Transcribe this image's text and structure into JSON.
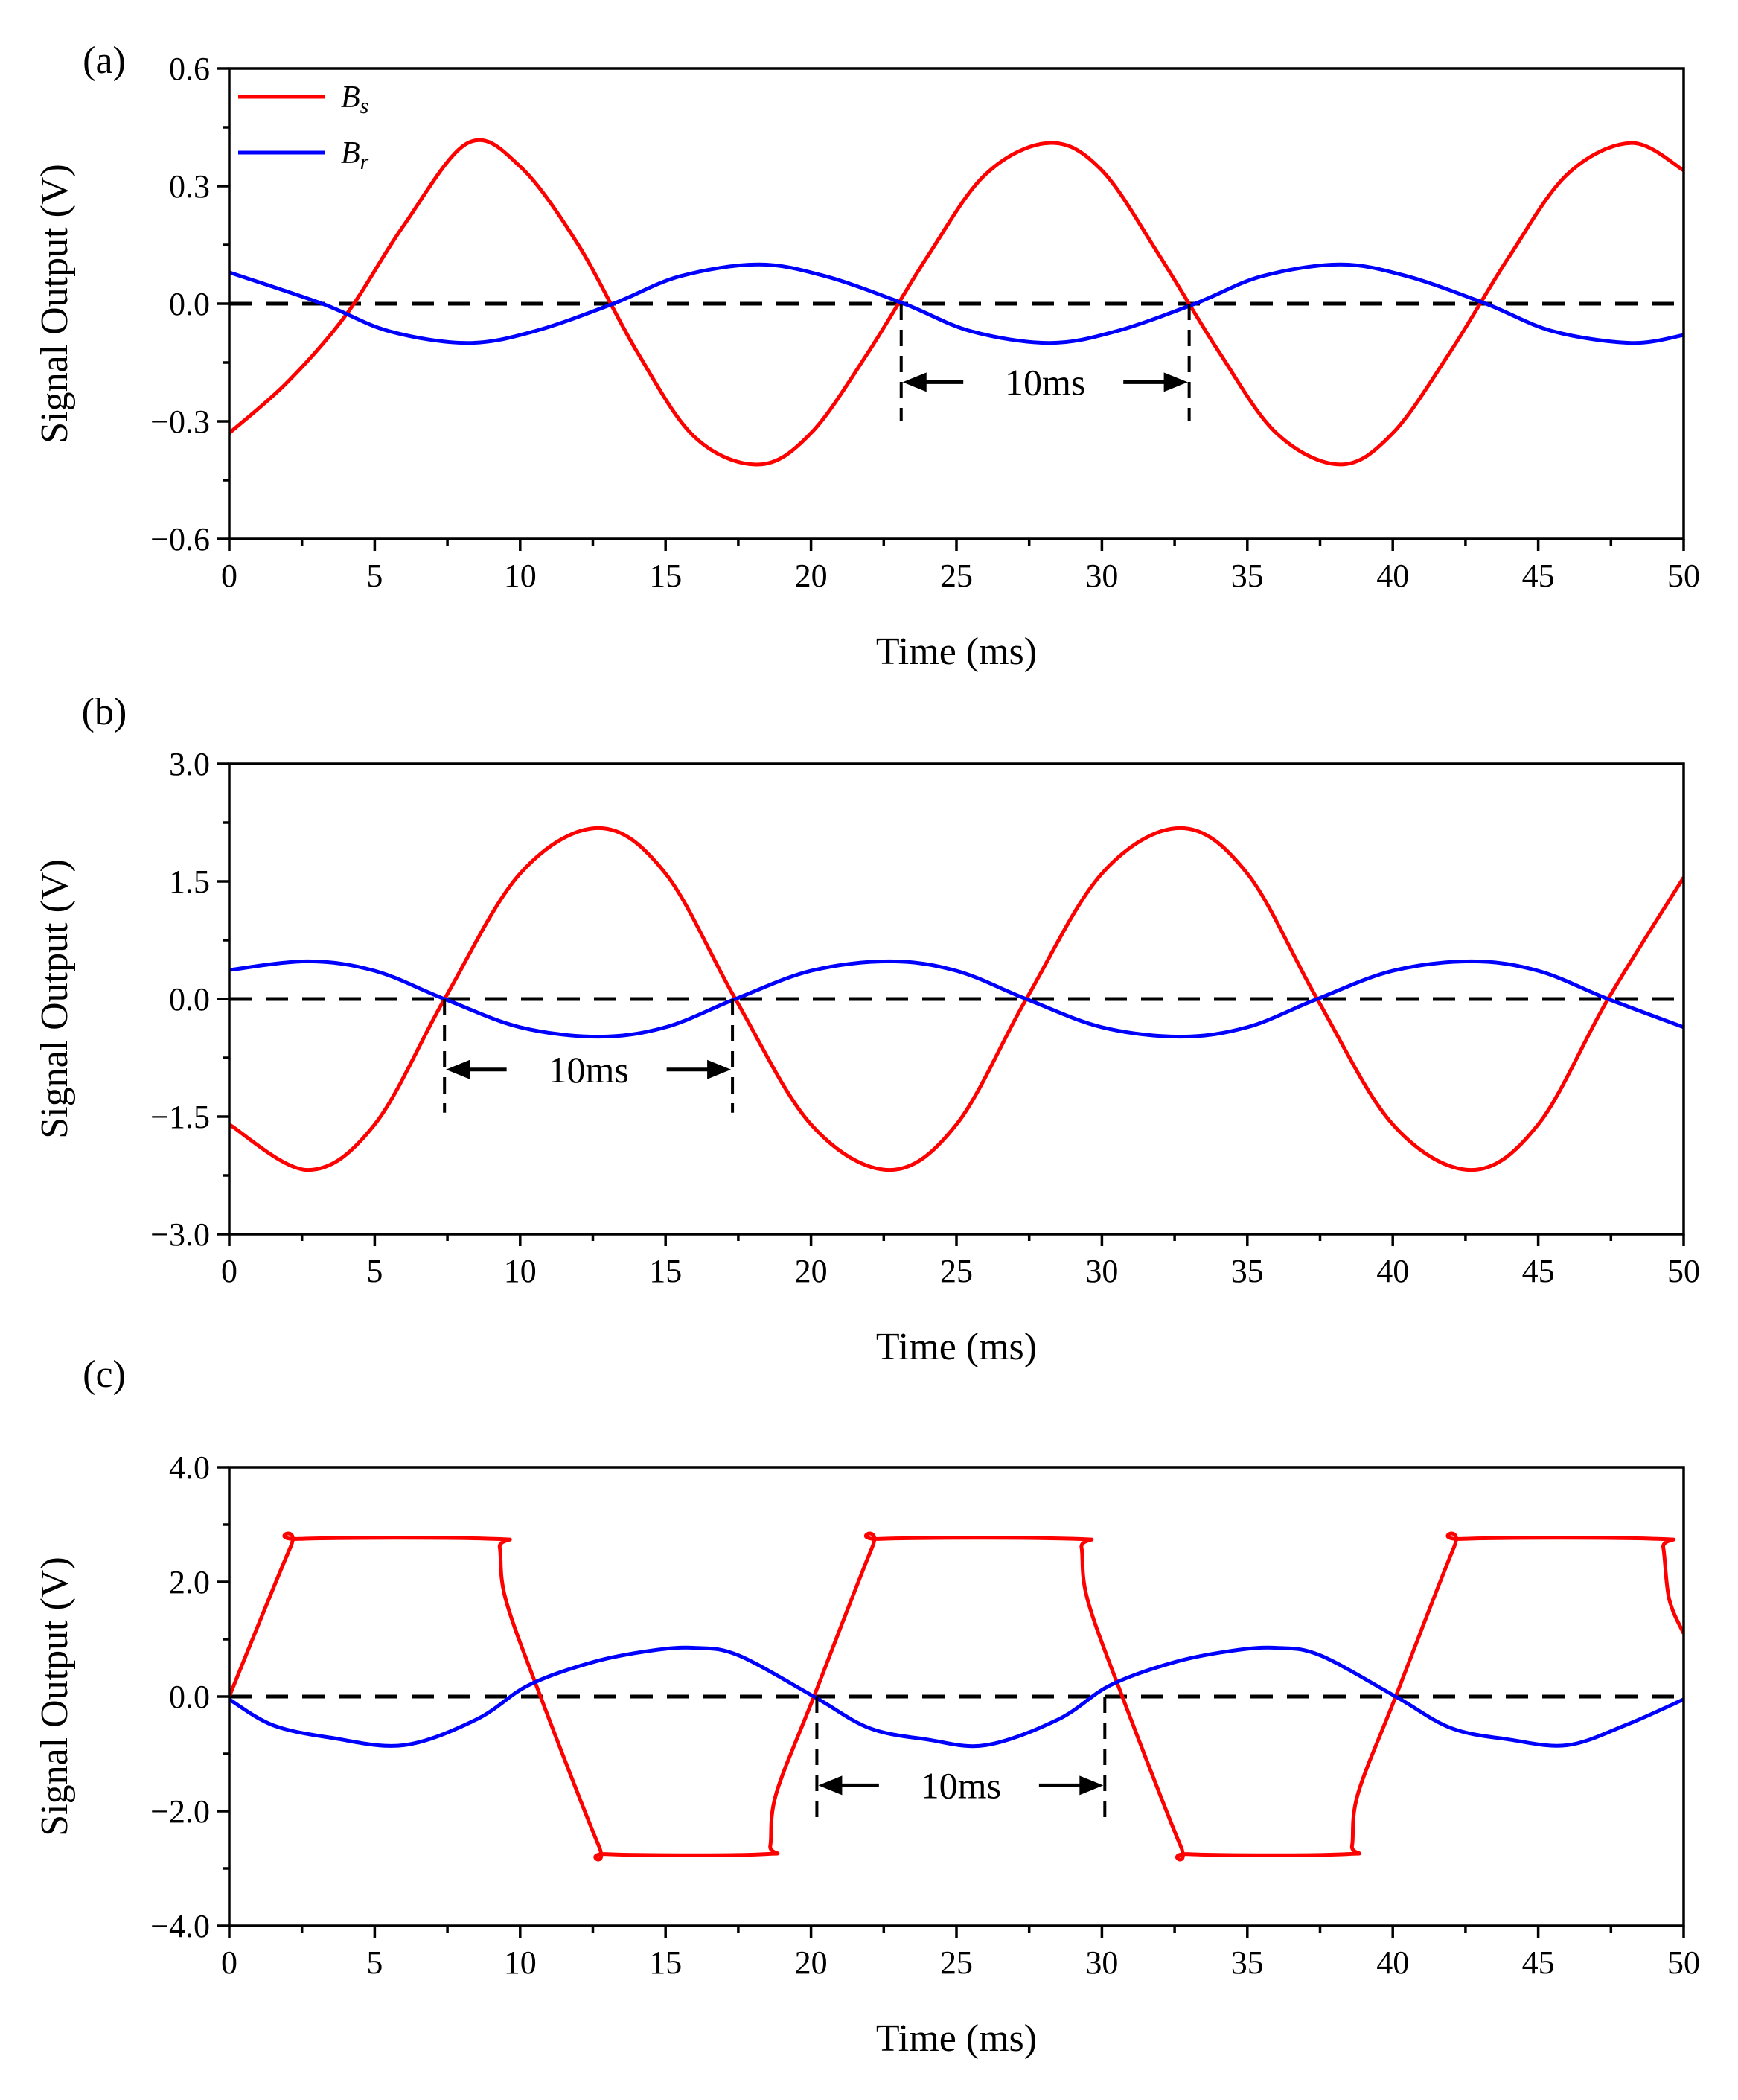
{
  "colors": {
    "bs": "#ff0000",
    "br": "#0000ff",
    "axis": "#000000"
  },
  "legend": {
    "bs_label_main": "B",
    "bs_label_sub": "s",
    "br_label_main": "B",
    "br_label_sub": "r",
    "placement": "top-left"
  },
  "chart_data": [
    {
      "type": "line",
      "panel_label": "(a)",
      "xlabel": "Time (ms)",
      "ylabel": "Signal Output (V)",
      "xlim": [
        0,
        50
      ],
      "ylim": [
        -0.6,
        0.6
      ],
      "x_ticks": [
        0,
        5,
        10,
        15,
        20,
        25,
        30,
        35,
        40,
        45,
        50
      ],
      "x_tick_labels": [
        "0",
        "5",
        "10",
        "15",
        "20",
        "25",
        "30",
        "35",
        "40",
        "45",
        "50"
      ],
      "y_ticks": [
        -0.6,
        -0.3,
        0.0,
        0.3,
        0.6
      ],
      "y_tick_labels": [
        "−0.6",
        "−0.3",
        "0.0",
        "0.3",
        "0.6"
      ],
      "reference_line_y": 0,
      "show_legend": true,
      "series": [
        {
          "name": "Bs",
          "color": "#ff0000",
          "x": [
            0,
            2,
            4,
            6,
            8.2,
            10,
            12,
            14,
            16,
            18.2,
            20,
            22,
            24,
            26,
            28.2,
            30,
            32,
            34,
            36,
            38.2,
            40,
            42,
            44,
            46,
            48.2,
            50
          ],
          "y": [
            -0.33,
            -0.2,
            -0.03,
            0.2,
            0.41,
            0.35,
            0.15,
            -0.12,
            -0.34,
            -0.41,
            -0.33,
            -0.12,
            0.12,
            0.33,
            0.41,
            0.34,
            0.12,
            -0.12,
            -0.33,
            -0.41,
            -0.33,
            -0.12,
            0.12,
            0.33,
            0.41,
            0.34
          ]
        },
        {
          "name": "Br",
          "color": "#0000ff",
          "x": [
            0,
            3.2,
            5.5,
            8.2,
            10.5,
            13.2,
            15.5,
            18.2,
            20.5,
            23.2,
            25.5,
            28.2,
            30.5,
            33.2,
            35.5,
            38.2,
            40.5,
            43.2,
            45.5,
            48.2,
            50
          ],
          "y": [
            0.08,
            0.0,
            -0.07,
            -0.1,
            -0.07,
            0.0,
            0.07,
            0.1,
            0.07,
            0.0,
            -0.07,
            -0.1,
            -0.07,
            0.0,
            0.07,
            0.1,
            0.07,
            0.0,
            -0.07,
            -0.1,
            -0.08
          ]
        }
      ],
      "annotation": {
        "text": "10ms",
        "x_start": 23.1,
        "x_end": 33.0,
        "y": -0.2,
        "y_low": -0.3
      }
    },
    {
      "type": "line",
      "panel_label": "(b)",
      "xlabel": "Time (ms)",
      "ylabel": "Signal Output (V)",
      "xlim": [
        0,
        50
      ],
      "ylim": [
        -3.0,
        3.0
      ],
      "x_ticks": [
        0,
        5,
        10,
        15,
        20,
        25,
        30,
        35,
        40,
        45,
        50
      ],
      "x_tick_labels": [
        "0",
        "5",
        "10",
        "15",
        "20",
        "25",
        "30",
        "35",
        "40",
        "45",
        "50"
      ],
      "y_ticks": [
        -3.0,
        -1.5,
        0.0,
        1.5,
        3.0
      ],
      "y_tick_labels": [
        "−3.0",
        "−1.5",
        "0.0",
        "1.5",
        "3.0"
      ],
      "reference_line_y": 0,
      "show_legend": false,
      "series": [
        {
          "name": "Bs",
          "color": "#ff0000",
          "x": [
            0,
            2.7,
            5,
            7.4,
            10,
            12.7,
            15,
            17.4,
            20,
            22.7,
            25,
            27.4,
            30,
            32.7,
            35,
            37.4,
            40,
            42.7,
            45,
            47.4,
            50
          ],
          "y": [
            -1.6,
            -2.18,
            -1.6,
            0.0,
            1.6,
            2.18,
            1.6,
            0.0,
            -1.6,
            -2.18,
            -1.6,
            0.0,
            1.6,
            2.18,
            1.6,
            0.0,
            -1.6,
            -2.18,
            -1.6,
            0.0,
            1.55
          ]
        },
        {
          "name": "Br",
          "color": "#0000ff",
          "x": [
            0,
            2.7,
            5,
            7.4,
            10,
            12.7,
            15,
            17.4,
            20,
            22.7,
            25,
            27.4,
            30,
            32.7,
            35,
            37.4,
            40,
            42.7,
            45,
            47.4,
            50
          ],
          "y": [
            0.37,
            0.48,
            0.36,
            0.0,
            -0.36,
            -0.48,
            -0.36,
            0.0,
            0.36,
            0.48,
            0.36,
            0.0,
            -0.36,
            -0.48,
            -0.36,
            0.0,
            0.36,
            0.48,
            0.36,
            0.0,
            -0.36
          ]
        }
      ],
      "annotation": {
        "text": "10ms",
        "x_start": 7.4,
        "x_end": 17.3,
        "y": -0.9,
        "y_low": -1.45
      }
    },
    {
      "type": "line",
      "panel_label": "(c)",
      "xlabel": "Time (ms)",
      "ylabel": "Signal Output (V)",
      "xlim": [
        0,
        50
      ],
      "ylim": [
        -4.0,
        4.0
      ],
      "x_ticks": [
        0,
        5,
        10,
        15,
        20,
        25,
        30,
        35,
        40,
        45,
        50
      ],
      "x_tick_labels": [
        "0",
        "5",
        "10",
        "15",
        "20",
        "25",
        "30",
        "35",
        "40",
        "45",
        "50"
      ],
      "y_ticks": [
        -4.0,
        -2.0,
        0.0,
        2.0,
        4.0
      ],
      "y_tick_labels": [
        "−4.0",
        "−2.0",
        "0.0",
        "2.0",
        "4.0"
      ],
      "reference_line_y": 0,
      "show_legend": false,
      "series": [
        {
          "name": "Bs",
          "color": "#ff0000",
          "x": [
            0,
            2.1,
            2.4,
            9.1,
            9.3,
            9.5,
            10.7,
            12.7,
            13.0,
            18.4,
            18.6,
            18.8,
            20.1,
            22.1,
            22.4,
            29.1,
            29.3,
            29.5,
            30.7,
            32.7,
            33.0,
            38.4,
            38.6,
            38.8,
            40.1,
            42.1,
            42.4,
            49.1,
            49.3,
            49.5,
            50
          ],
          "y": [
            0.0,
            2.6,
            2.75,
            2.75,
            2.6,
            1.7,
            0.0,
            -2.6,
            -2.75,
            -2.75,
            -2.6,
            -1.7,
            0.0,
            2.6,
            2.75,
            2.75,
            2.6,
            1.7,
            0.0,
            -2.6,
            -2.75,
            -2.75,
            -2.6,
            -1.7,
            0.0,
            2.6,
            2.75,
            2.75,
            2.6,
            1.7,
            1.1
          ]
        },
        {
          "name": "Br",
          "color": "#0000ff",
          "x": [
            0,
            1.5,
            3.5,
            6.0,
            8.5,
            10.3,
            12.5,
            14.5,
            16.0,
            17.5,
            20.1,
            22,
            24,
            26.0,
            28.5,
            30.3,
            32.5,
            34.5,
            36.0,
            37.5,
            40.1,
            42,
            44,
            46.0,
            48,
            50
          ],
          "y": [
            -0.05,
            -0.5,
            -0.72,
            -0.85,
            -0.4,
            0.2,
            0.6,
            0.8,
            0.85,
            0.72,
            0.0,
            -0.55,
            -0.75,
            -0.85,
            -0.4,
            0.2,
            0.6,
            0.8,
            0.85,
            0.72,
            0.0,
            -0.55,
            -0.75,
            -0.85,
            -0.5,
            -0.05
          ]
        }
      ],
      "annotation": {
        "text": "10ms",
        "x_start": 20.2,
        "x_end": 30.1,
        "y": -1.55,
        "y_low": -2.15
      }
    }
  ]
}
